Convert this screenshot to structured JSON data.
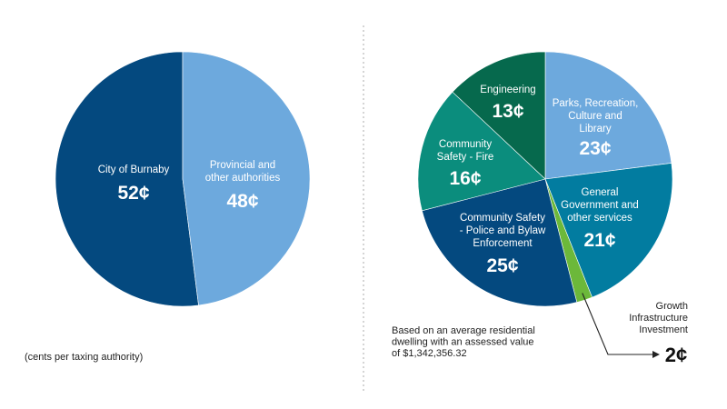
{
  "chart_data": [
    {
      "type": "pie",
      "title": "",
      "note": "(cents per taxing authority)",
      "slices": [
        {
          "name": [
            "City of Burnaby"
          ],
          "value": 52,
          "value_label": "52¢",
          "color": "#04497f"
        },
        {
          "name": [
            "Provincial and",
            "other authorities"
          ],
          "value": 48,
          "value_label": "48¢",
          "color": "#6da9dd"
        }
      ]
    },
    {
      "type": "pie",
      "title": "",
      "note": [
        "Based on an average residential",
        "dwelling with an assessed value",
        "of $1,342,356.32"
      ],
      "slices": [
        {
          "name": [
            "Parks, Recreation,",
            "Culture and",
            "Library"
          ],
          "value": 23,
          "value_label": "23¢",
          "color": "#6da9dd"
        },
        {
          "name": [
            "General",
            "Government and",
            "other services"
          ],
          "value": 21,
          "value_label": "21¢",
          "color": "#027ca0"
        },
        {
          "name": [
            "Growth",
            "Infrastructure",
            "Investment"
          ],
          "value": 2,
          "value_label": "2¢",
          "color": "#6cb83a"
        },
        {
          "name": [
            "Community Safety",
            "- Police and Bylaw",
            "Enforcement"
          ],
          "value": 25,
          "value_label": "25¢",
          "color": "#04497f"
        },
        {
          "name": [
            "Community",
            "Safety - Fire"
          ],
          "value": 16,
          "value_label": "16¢",
          "color": "#0b8d7d"
        },
        {
          "name": [
            "Engineering"
          ],
          "value": 13,
          "value_label": "13¢",
          "color": "#06694d"
        }
      ]
    }
  ]
}
